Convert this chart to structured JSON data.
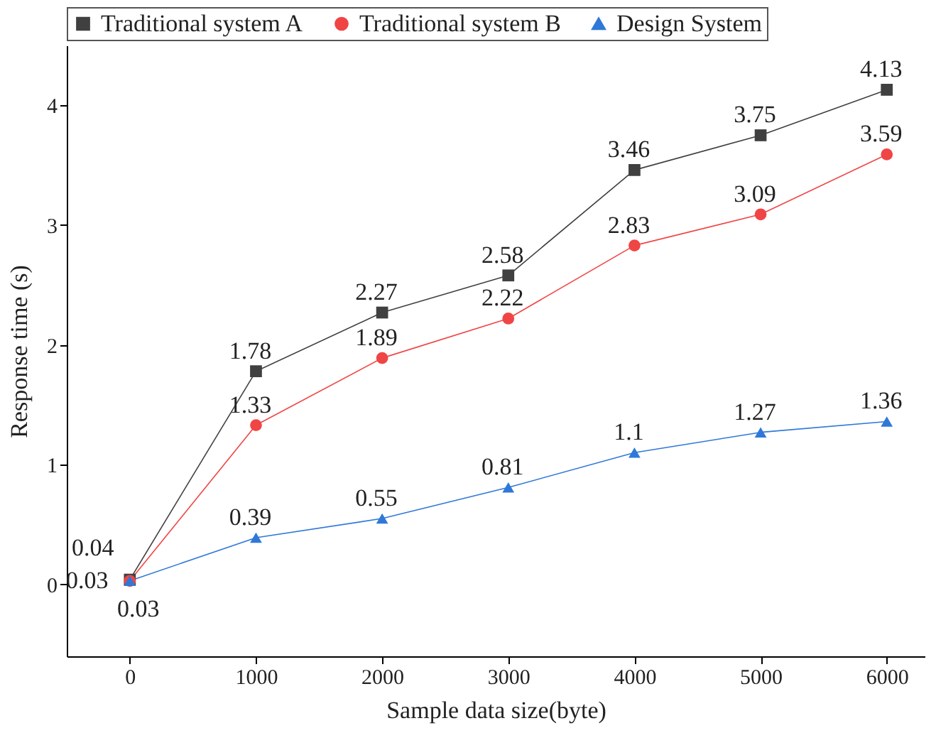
{
  "chart_data": {
    "type": "line",
    "xlabel": "Sample data size(byte)",
    "ylabel": "Response time (s)",
    "x": [
      0,
      1000,
      2000,
      3000,
      4000,
      5000,
      6000
    ],
    "series": [
      {
        "name": "Traditional system A",
        "color": "#404040",
        "marker": "square",
        "values": [
          0.04,
          1.78,
          2.27,
          2.58,
          3.46,
          3.75,
          4.13
        ]
      },
      {
        "name": "Traditional system B",
        "color": "#f04545",
        "marker": "circle",
        "values": [
          0.03,
          1.33,
          1.89,
          2.22,
          2.83,
          3.09,
          3.59
        ]
      },
      {
        "name": "Design System",
        "color": "#2f78d8",
        "marker": "triangle",
        "values": [
          0.03,
          0.39,
          0.55,
          0.81,
          1.1,
          1.27,
          1.36
        ]
      }
    ],
    "xlim": [
      -500,
      6300
    ],
    "xticks": [
      0,
      1000,
      2000,
      3000,
      4000,
      5000,
      6000
    ],
    "ylim": [
      -0.6,
      4.5
    ],
    "yticks": [
      0,
      1,
      2,
      3,
      4
    ],
    "data_labels": true,
    "legend": "top",
    "grid": false,
    "line_style": "solid"
  }
}
